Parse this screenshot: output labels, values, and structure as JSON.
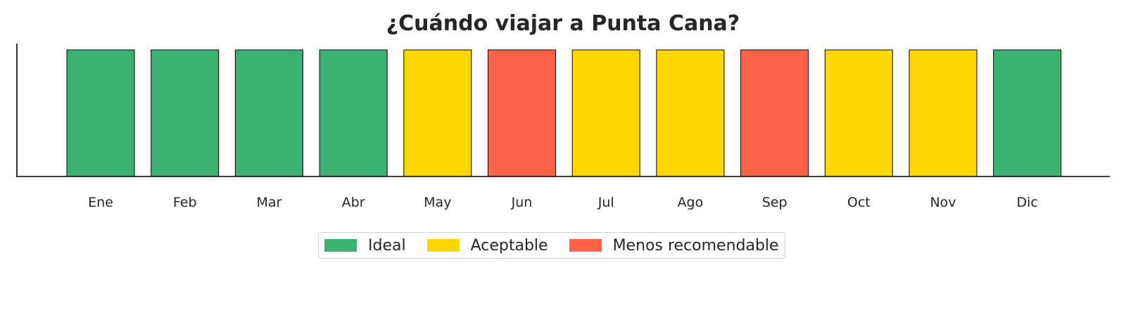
{
  "chart_data": {
    "type": "bar",
    "title": "¿Cuándo viajar a Punta Cana?",
    "xlabel": "",
    "ylabel": "",
    "categories": [
      "Ene",
      "Feb",
      "Mar",
      "Abr",
      "May",
      "Jun",
      "Jul",
      "Ago",
      "Sep",
      "Oct",
      "Nov",
      "Dic"
    ],
    "values": [
      1,
      1,
      1,
      1,
      1,
      1,
      1,
      1,
      1,
      1,
      1,
      1
    ],
    "status": [
      "Ideal",
      "Ideal",
      "Ideal",
      "Ideal",
      "Aceptable",
      "Menos recomendable",
      "Aceptable",
      "Aceptable",
      "Menos recomendable",
      "Aceptable",
      "Aceptable",
      "Ideal"
    ],
    "ylim": [
      0,
      1.05
    ],
    "grid": false,
    "legend_position": "bottom-center",
    "legend": [
      {
        "label": "Ideal",
        "color": "#3cb371"
      },
      {
        "label": "Aceptable",
        "color": "#ffd700"
      },
      {
        "label": "Menos recomendable",
        "color": "#ff6347"
      }
    ]
  }
}
